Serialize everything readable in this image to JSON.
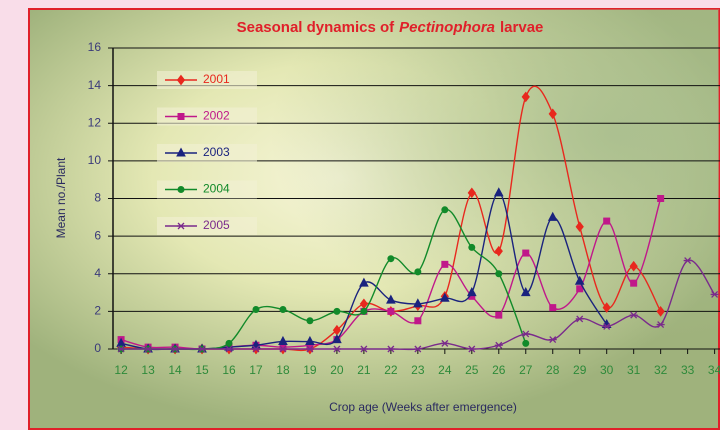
{
  "chart_data": {
    "type": "line",
    "title": [
      "Seasonal dynamics of",
      "Pectinophora",
      "larvae"
    ],
    "x_label": "Crop age (Weeks after emergence)",
    "y_label": "Mean no./Plant",
    "x": [
      12,
      13,
      14,
      15,
      16,
      17,
      18,
      19,
      20,
      21,
      22,
      23,
      24,
      25,
      26,
      27,
      28,
      29,
      30,
      31,
      32,
      33,
      34
    ],
    "xlim": [
      11.7,
      34.2
    ],
    "xticks": [
      12,
      13,
      14,
      15,
      16,
      17,
      18,
      19,
      20,
      21,
      22,
      23,
      24,
      25,
      26,
      27,
      28,
      29,
      30,
      31,
      32,
      33,
      34
    ],
    "ylim": [
      0,
      16
    ],
    "yticks": [
      0,
      2,
      4,
      6,
      8,
      10,
      12,
      14,
      16
    ],
    "grid": true,
    "legend": "upper left",
    "series": [
      {
        "name": "2001",
        "color": "#e8281e",
        "marker": "diamond",
        "values": [
          0.1,
          0,
          0,
          0,
          0,
          0,
          0,
          0,
          1,
          2.4,
          2,
          2.3,
          2.8,
          8.3,
          5.2,
          13.4,
          12.5,
          6.5,
          2.2,
          4.4,
          2,
          null,
          null
        ]
      },
      {
        "name": "2002",
        "color": "#c0188a",
        "marker": "square",
        "values": [
          0.5,
          0.1,
          0.1,
          0,
          0.1,
          0.2,
          0.1,
          0.2,
          0.5,
          2,
          2,
          1.5,
          4.5,
          2.8,
          1.8,
          5.1,
          2.2,
          3.2,
          6.8,
          3.5,
          8,
          null,
          null
        ]
      },
      {
        "name": "2003",
        "color": "#1a237e",
        "marker": "triangle",
        "values": [
          0.3,
          0,
          0,
          0,
          0.1,
          0.2,
          0.4,
          0.4,
          0.5,
          3.5,
          2.6,
          2.4,
          2.7,
          3,
          8.3,
          3,
          7,
          3.6,
          1.3,
          null,
          null,
          null,
          null
        ]
      },
      {
        "name": "2004",
        "color": "#128a2a",
        "marker": "circle",
        "values": [
          0,
          0,
          0,
          0,
          0.3,
          2.1,
          2.1,
          1.5,
          2,
          2,
          4.8,
          4.1,
          7.4,
          5.4,
          4,
          0.3,
          null,
          null,
          null,
          null,
          null,
          null,
          null
        ]
      },
      {
        "name": "2005",
        "color": "#7a2a8c",
        "marker": "star",
        "values": [
          0,
          0,
          0,
          0,
          0,
          0,
          0,
          0,
          0,
          0,
          0,
          0,
          0.3,
          0,
          0.2,
          0.8,
          0.5,
          1.6,
          1.2,
          1.8,
          1.3,
          4.7,
          2.9
        ]
      }
    ]
  }
}
